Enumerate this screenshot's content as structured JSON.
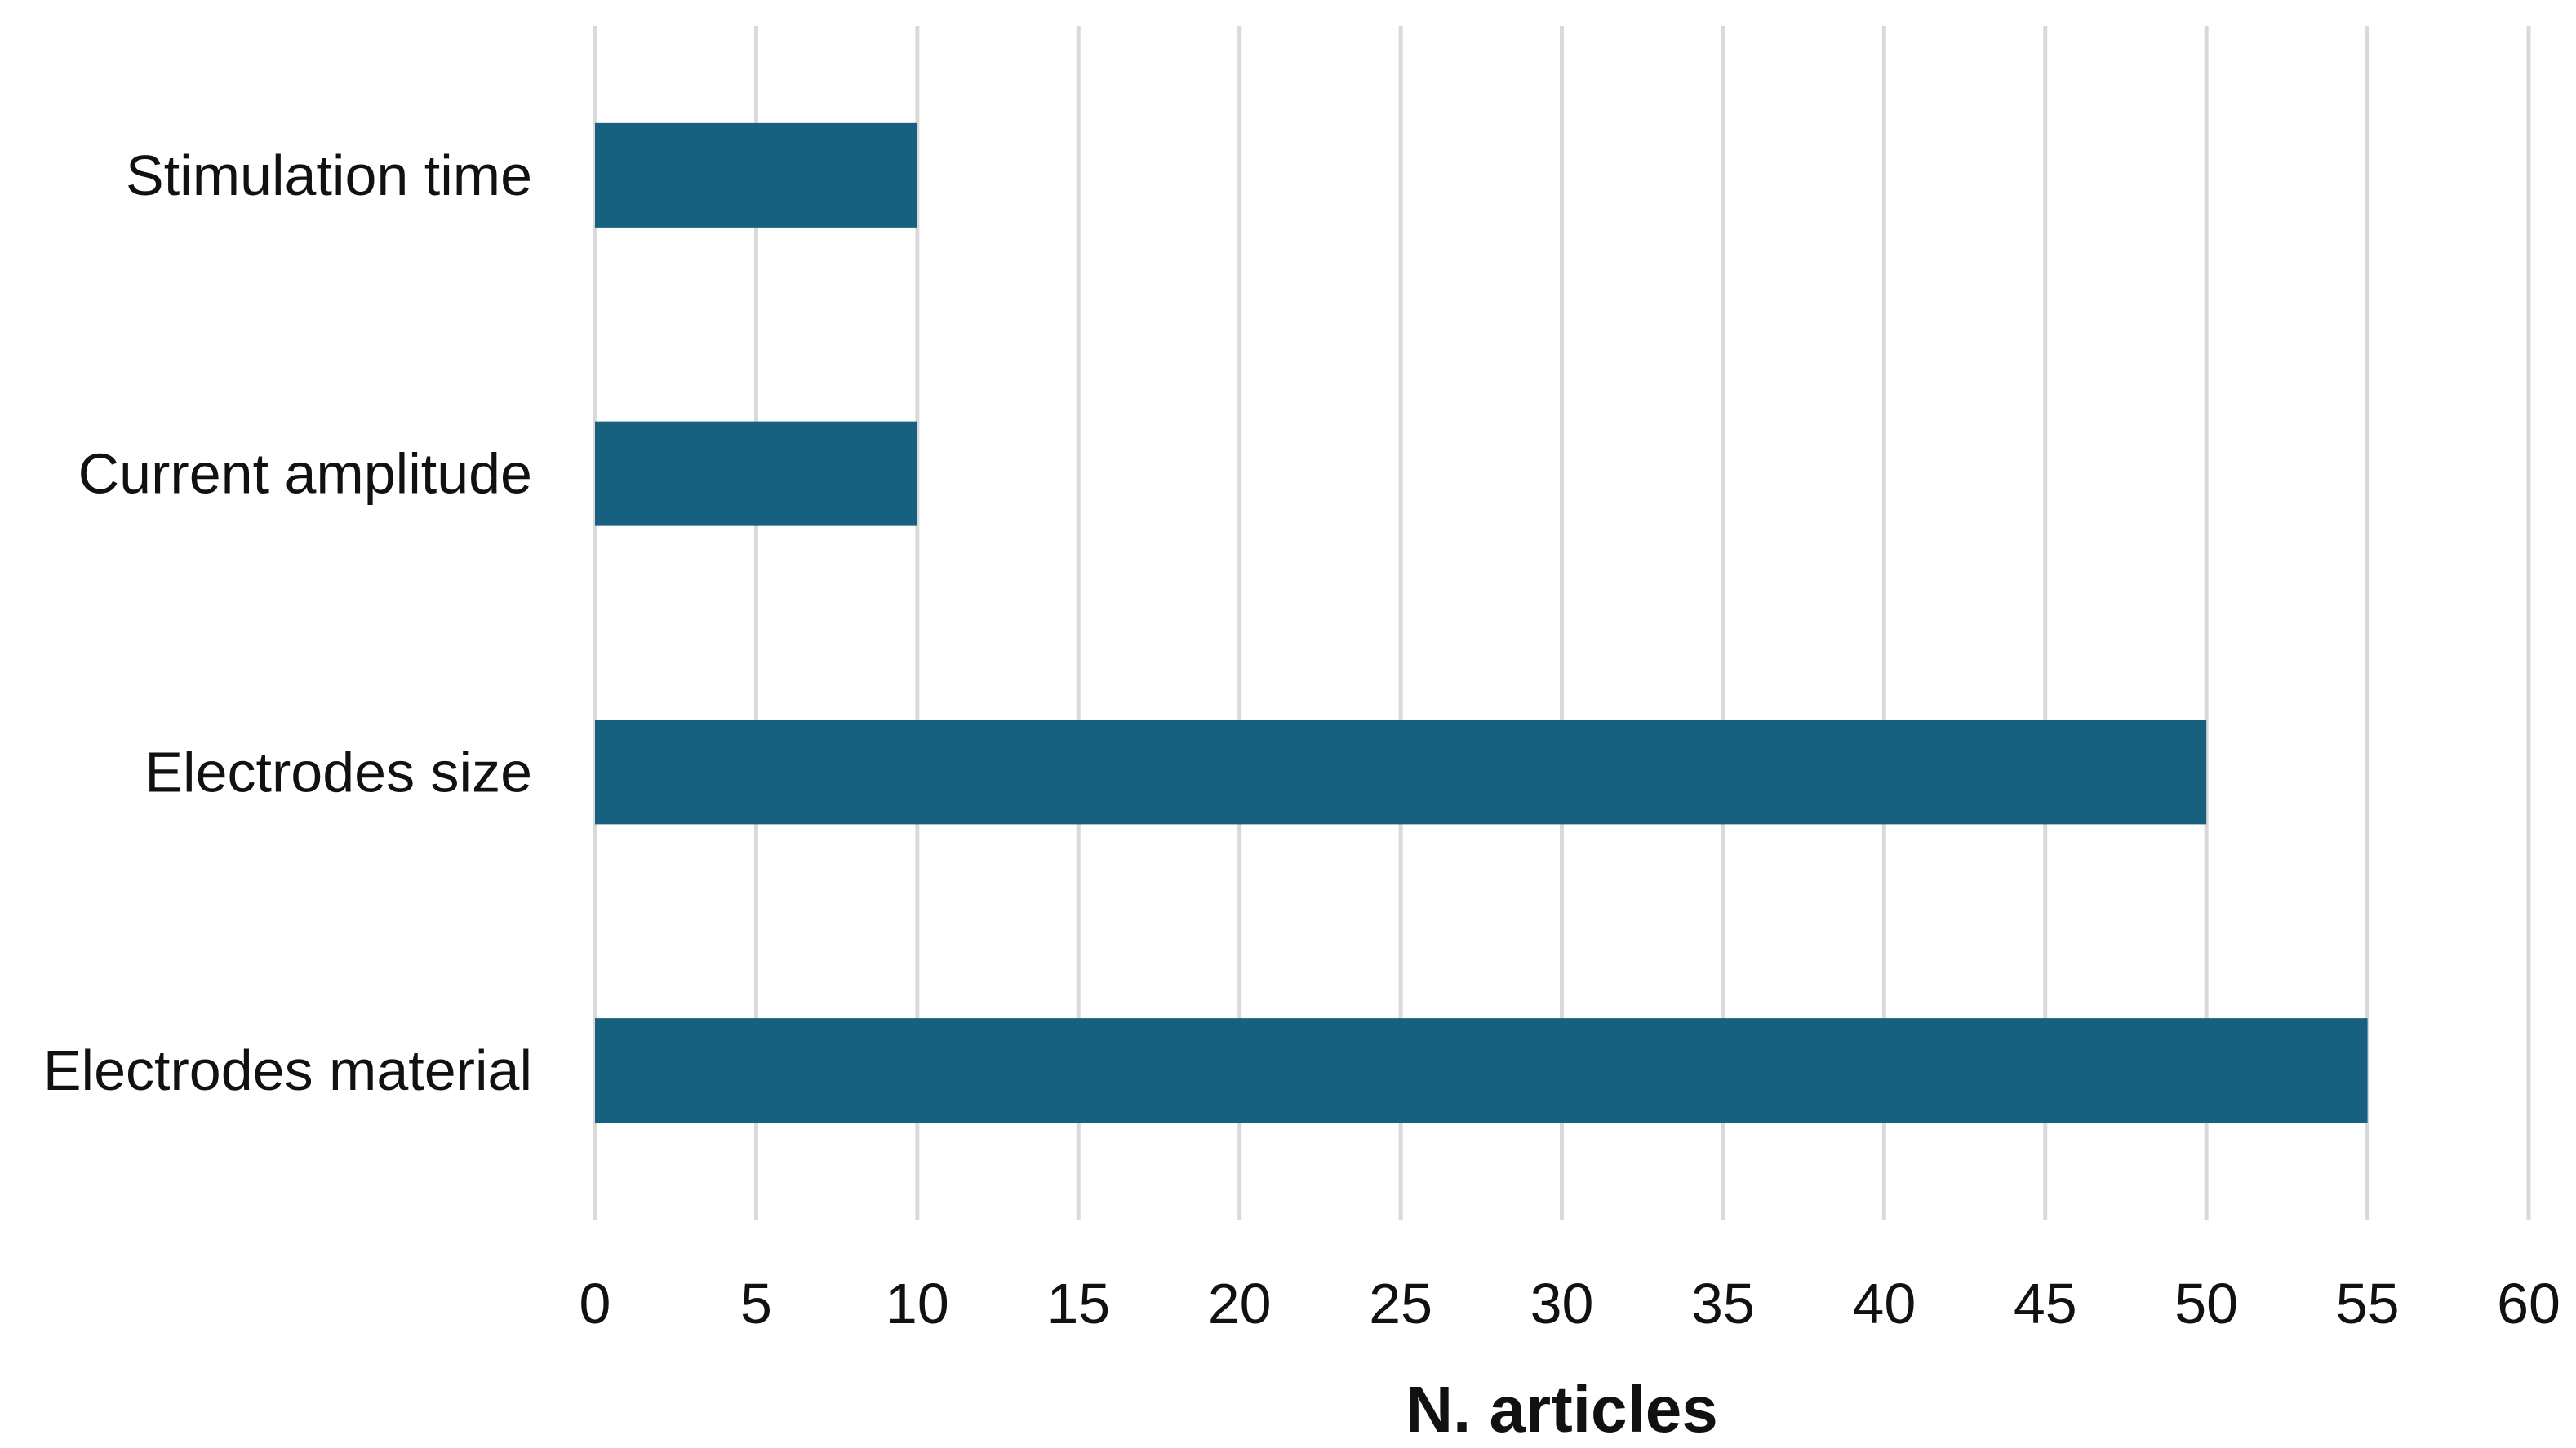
{
  "chart_data": {
    "type": "bar",
    "orientation": "horizontal",
    "categories": [
      "Stimulation time",
      "Current amplitude",
      "Electrodes size",
      "Electrodes material"
    ],
    "values": [
      10,
      10,
      50,
      55
    ],
    "title": "",
    "xlabel": "N. articles",
    "ylabel": "",
    "xlim": [
      0,
      60
    ],
    "xticks": [
      "0",
      "5",
      "10",
      "15",
      "20",
      "25",
      "30",
      "35",
      "40",
      "45",
      "50",
      "55",
      "60"
    ],
    "grid": "vertical",
    "legend": "none",
    "bar_color": "#17607f",
    "grid_color": "#d9d9d9"
  }
}
